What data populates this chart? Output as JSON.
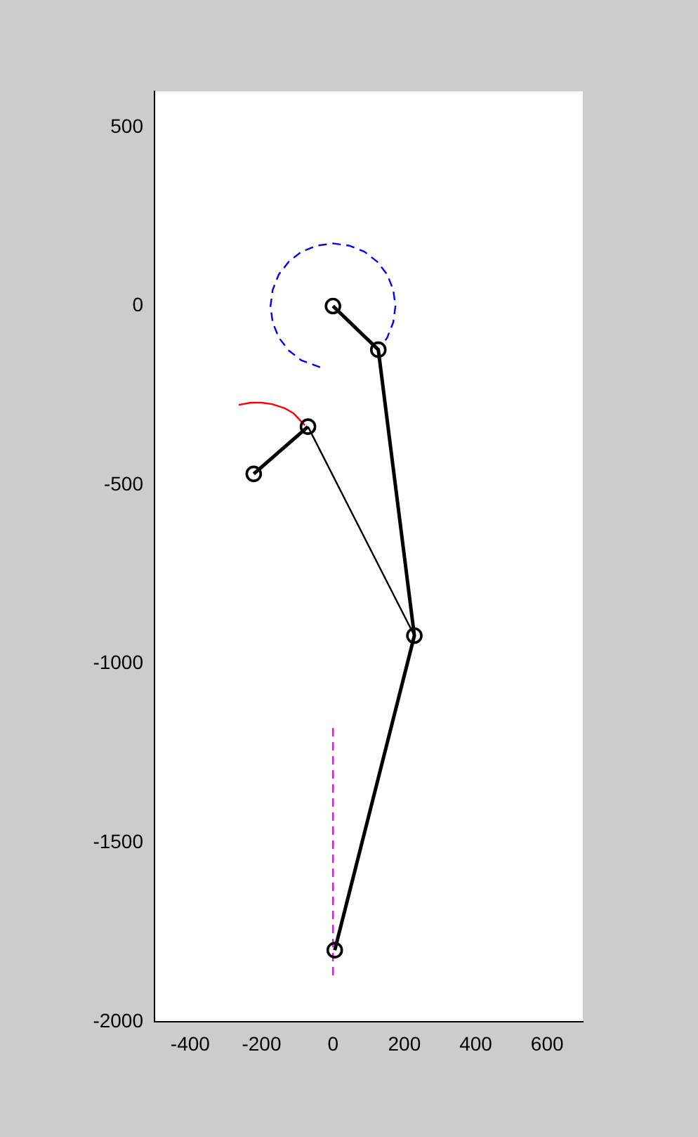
{
  "chart_data": {
    "type": "line",
    "xlim": [
      -500,
      700
    ],
    "xticks": [
      -400,
      -200,
      0,
      200,
      400,
      600
    ],
    "ylim": [
      -2000,
      600
    ],
    "yticks": [
      -2000,
      -1500,
      -1000,
      -500,
      0,
      500
    ],
    "grid": false,
    "legend": false,
    "series": [
      {
        "color": "#000000",
        "marker": "circle",
        "line_style": "solid",
        "x": [
          0,
          127,
          228,
          5
        ],
        "values": [
          0,
          -122,
          -921,
          -1800
        ]
      },
      {
        "color": "#000000",
        "marker": "circle",
        "line_style": "solid",
        "x": [
          -222,
          -70
        ],
        "values": [
          -469,
          -337
        ]
      },
      {
        "color": "#000000",
        "marker": "none",
        "line_style": "solid",
        "x": [
          -70,
          228
        ],
        "values": [
          -337,
          -921
        ]
      },
      {
        "color": "#0000ff",
        "marker": "none",
        "line_style": "dashed",
        "x": [
          -36,
          -88,
          -124,
          -152,
          -169,
          -175,
          -169,
          -152,
          -124,
          -88,
          -45,
          0,
          45,
          88,
          124,
          152,
          169,
          175,
          169,
          152,
          142
        ],
        "values": [
          -171,
          -152,
          -124,
          -88,
          -45,
          0,
          45,
          88,
          124,
          152,
          169,
          175,
          169,
          152,
          124,
          88,
          45,
          0,
          -45,
          -88,
          -103
        ]
      },
      {
        "color": "#ff0000",
        "marker": "none",
        "line_style": "solid",
        "x": [
          -264,
          -230,
          -200,
          -170,
          -134,
          -110,
          -79
        ],
        "values": [
          -276,
          -270,
          -270,
          -274,
          -286,
          -300,
          -333
        ]
      },
      {
        "color": "#ff00ff",
        "marker": "none",
        "line_style": "dashed",
        "x": [
          0,
          0
        ],
        "values": [
          -1179,
          -1873
        ]
      }
    ]
  }
}
